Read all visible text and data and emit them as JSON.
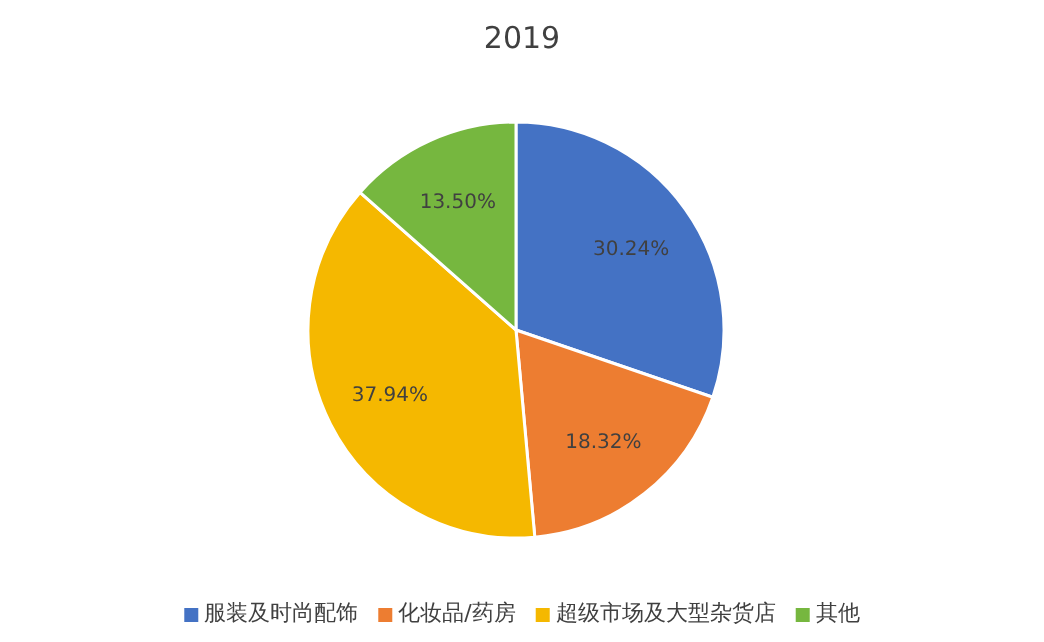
{
  "chart_data": {
    "type": "pie",
    "title": "2019",
    "categories": [
      "服装及时尚配饰",
      "化妆品/药房",
      "超级市场及大型杂货店",
      "其他"
    ],
    "values": [
      30.24,
      18.32,
      37.94,
      13.5
    ],
    "value_labels": [
      "30.24%",
      "18.32%",
      "37.94%",
      "13.50%"
    ],
    "colors": [
      "#4472c4",
      "#ed7d31",
      "#f5b800",
      "#76b73f"
    ],
    "legend": "bottom"
  }
}
